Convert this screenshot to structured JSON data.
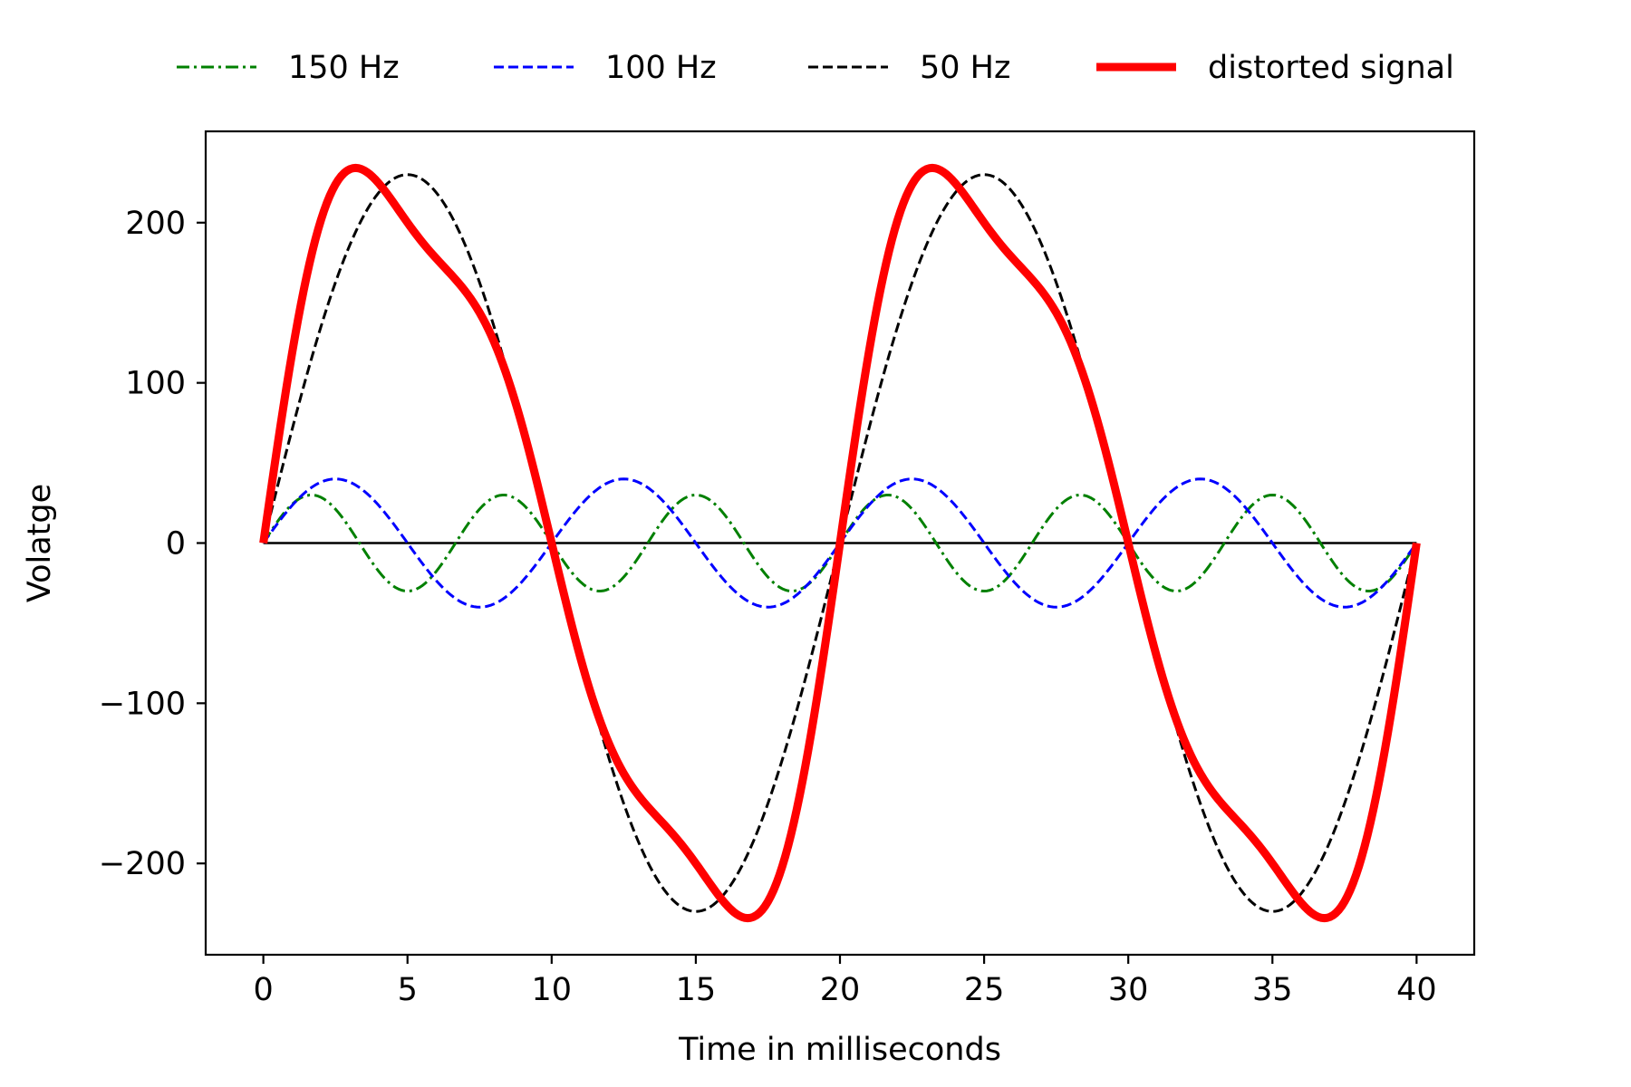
{
  "chart_data": {
    "type": "line",
    "title": "",
    "xlabel": "Time in milliseconds",
    "ylabel": "Volatge",
    "xlim": [
      -2,
      42
    ],
    "ylim": [
      -257,
      257
    ],
    "x_ticks": [
      0,
      5,
      10,
      15,
      20,
      25,
      30,
      35,
      40
    ],
    "y_ticks": [
      -200,
      -100,
      0,
      100,
      200
    ],
    "x_tick_labels": [
      "0",
      "5",
      "10",
      "15",
      "20",
      "25",
      "30",
      "35",
      "40"
    ],
    "y_tick_labels": [
      "−200",
      "−100",
      "0",
      "100",
      "200"
    ],
    "grid": false,
    "legend_position": "top",
    "zero_line": true,
    "x_range": [
      0,
      40
    ],
    "series": [
      {
        "name": "150 Hz",
        "amplitude": 30,
        "frequency_hz": 150,
        "color": "#008000",
        "style": "dashdot",
        "width": 3
      },
      {
        "name": "100 Hz",
        "amplitude": 40,
        "frequency_hz": 100,
        "color": "#0000ff",
        "style": "dashed",
        "width": 3
      },
      {
        "name": "50 Hz",
        "amplitude": 230,
        "frequency_hz": 50,
        "color": "#000000",
        "style": "dashed",
        "width": 3
      },
      {
        "name": "distorted signal",
        "components": [
          "150 Hz",
          "100 Hz",
          "50 Hz"
        ],
        "color": "#ff0000",
        "style": "solid",
        "width": 9
      }
    ]
  }
}
